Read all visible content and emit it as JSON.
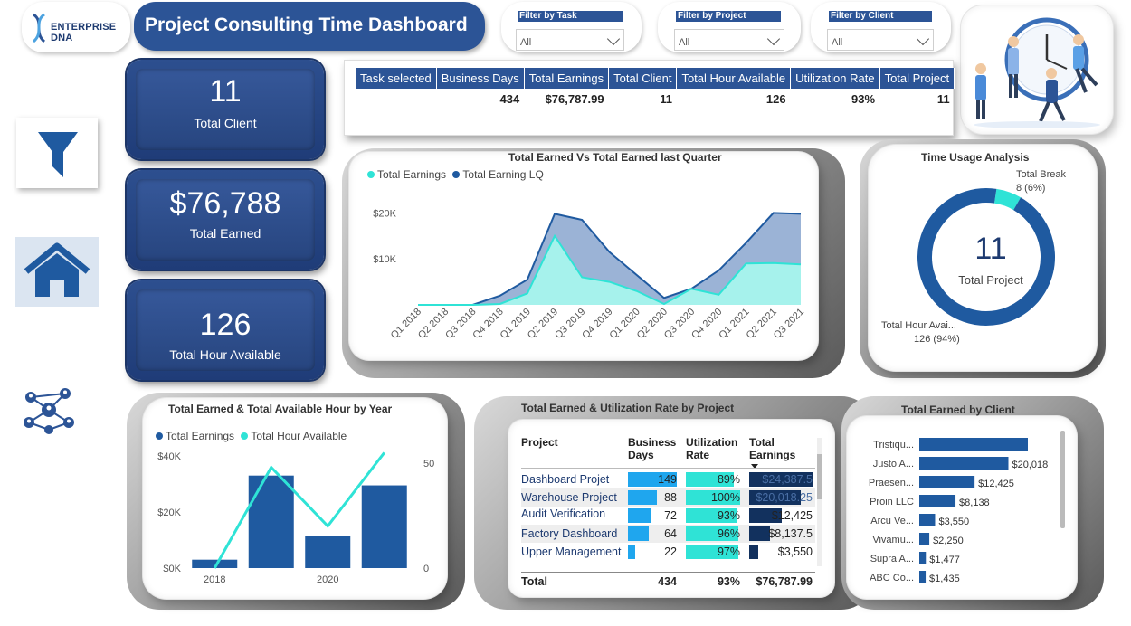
{
  "header": {
    "logo_text": "ENTERPRISE DNA",
    "title": "Project Consulting Time Dashboard"
  },
  "filters": [
    {
      "label": "Filter by Task",
      "value": "All"
    },
    {
      "label": "Filter by Project",
      "value": "All"
    },
    {
      "label": "Filter by Client",
      "value": "All"
    }
  ],
  "kpis": [
    {
      "value": "11",
      "label": "Total Client"
    },
    {
      "value": "$76,788",
      "label": "Total Earned"
    },
    {
      "value": "126",
      "label": "Total Hour Available"
    }
  ],
  "nav_icons": [
    "filter-icon",
    "home-icon",
    "network-icon"
  ],
  "summary_table": {
    "headers": [
      "Task selected",
      "Business Days",
      "Total Earnings",
      "Total Client",
      "Total Hour Available",
      "Utilization Rate",
      "Total Project"
    ],
    "values": [
      "",
      "434",
      "$76,787.99",
      "11",
      "126",
      "93%",
      "11"
    ]
  },
  "quarter_chart": {
    "title": "Total Earned Vs Total Earned last Quarter",
    "legend": [
      "Total Earnings",
      "Total Earning LQ"
    ],
    "colors": [
      "#2fe3d6",
      "#1f5aa0"
    ],
    "y_ticks": [
      "$20K",
      "$10K"
    ],
    "chart_data": {
      "type": "area",
      "categories": [
        "Q1 2018",
        "Q2 2018",
        "Q3 2018",
        "Q4 2018",
        "Q1 2019",
        "Q2 2019",
        "Q3 2019",
        "Q4 2019",
        "Q1 2020",
        "Q2 2020",
        "Q3 2020",
        "Q4 2020",
        "Q1 2021",
        "Q2 2021",
        "Q3 2021"
      ],
      "series": [
        {
          "name": "Total Earnings",
          "values": [
            0,
            0,
            0,
            200,
            2500,
            15000,
            6000,
            5000,
            3000,
            200,
            3500,
            2200,
            9000,
            9100,
            8800
          ]
        },
        {
          "name": "Total Earning LQ",
          "values": [
            null,
            0,
            0,
            2000,
            5500,
            19800,
            18500,
            11500,
            6500,
            1500,
            3500,
            7500,
            13500,
            20000,
            19800
          ]
        }
      ],
      "ylim": [
        0,
        25000
      ]
    }
  },
  "time_usage": {
    "title": "Time Usage Analysis",
    "center_value": "11",
    "center_label": "Total Project",
    "label_break": "Total Break",
    "label_break_val": "8 (6%)",
    "label_hour": "Total Hour Avai...",
    "label_hour_val": "126 (94%)",
    "chart_data": {
      "type": "pie",
      "categories": [
        "Total Break",
        "Total Hour Available"
      ],
      "values": [
        8,
        126
      ],
      "colors": [
        "#2fe3d6",
        "#1f5aa0"
      ]
    }
  },
  "year_chart": {
    "title": "Total Earned & Total Available Hour by Year",
    "legend": [
      "Total Earnings",
      "Total Hour Available"
    ],
    "colors": [
      "#1f5aa0",
      "#2fe3d6"
    ],
    "y_left_ticks": [
      "$40K",
      "$20K",
      "$0K"
    ],
    "y_right_ticks": [
      "50",
      "0"
    ],
    "x_ticks": [
      "2018",
      "2020"
    ],
    "chart_data": {
      "type": "bar",
      "categories": [
        "2018",
        "2019",
        "2020",
        "2021"
      ],
      "series": [
        {
          "name": "Total Earnings",
          "values": [
            3000,
            33000,
            11500,
            29500
          ]
        },
        {
          "name": "Total Hour Available",
          "values": [
            0,
            48,
            20,
            55
          ]
        }
      ],
      "ylim": [
        0,
        40000
      ],
      "y2lim": [
        0,
        50
      ]
    }
  },
  "project_table": {
    "title": "Total Earned & Utilization Rate by Project",
    "headers": [
      "Project",
      "Business Days",
      "Utilization Rate",
      "Total Earnings"
    ],
    "rows": [
      {
        "project": "Dashboard Projet",
        "days": "149",
        "rate": "89%",
        "earn": "$24,387.5",
        "days_v": 149,
        "rate_v": 89,
        "earn_v": 24387.5
      },
      {
        "project": "Warehouse Project",
        "days": "88",
        "rate": "100%",
        "earn": "$20,018.25",
        "days_v": 88,
        "rate_v": 100,
        "earn_v": 20018.25
      },
      {
        "project": "Audit Verification",
        "days": "72",
        "rate": "93%",
        "earn": "$12,425",
        "days_v": 72,
        "rate_v": 93,
        "earn_v": 12425
      },
      {
        "project": "Factory Dashboard",
        "days": "64",
        "rate": "96%",
        "earn": "$8,137.5",
        "days_v": 64,
        "rate_v": 96,
        "earn_v": 8137.5
      },
      {
        "project": "Upper Management",
        "days": "22",
        "rate": "97%",
        "earn": "$3,550",
        "days_v": 22,
        "rate_v": 97,
        "earn_v": 3550
      }
    ],
    "total": {
      "label": "Total",
      "days": "434",
      "rate": "93%",
      "earn": "$76,787.99"
    }
  },
  "client_chart": {
    "title": "Total Earned by Client",
    "chart_data": {
      "type": "bar",
      "orientation": "horizontal",
      "categories": [
        "Tristiqu...",
        "Justo A...",
        "Praesen...",
        "Proin LLC",
        "Arcu Ve...",
        "Vivamu...",
        "Supra A...",
        "ABC Co..."
      ],
      "values": [
        24387,
        20018,
        12425,
        8138,
        3550,
        2250,
        1477,
        1435
      ],
      "labels": [
        "",
        "$20,018",
        "$12,425",
        "$8,138",
        "$3,550",
        "$2,250",
        "$1,477",
        "$1,435"
      ]
    }
  }
}
